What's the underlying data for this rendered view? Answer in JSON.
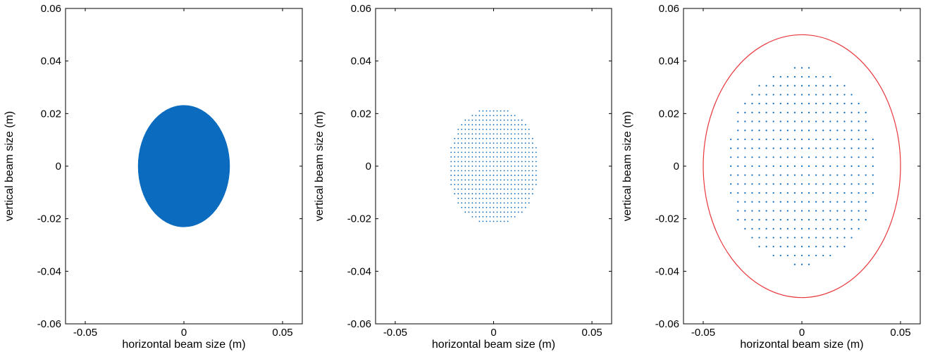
{
  "chart_data": [
    {
      "type": "scatter",
      "xlabel": "horizontal beam size (m)",
      "ylabel": "vertical beam size (m)",
      "xlim": [
        -0.06,
        0.06
      ],
      "ylim": [
        -0.06,
        0.06
      ],
      "xticks": [
        -0.05,
        0,
        0.05
      ],
      "xtick_labels": [
        "-0.05",
        "0",
        "0.05"
      ],
      "yticks": [
        -0.06,
        -0.04,
        -0.02,
        0,
        0.02,
        0.04,
        0.06
      ],
      "ytick_labels": [
        "-0.06",
        "-0.04",
        "-0.02",
        "0",
        "0.02",
        "0.04",
        "0.06"
      ],
      "series": [
        {
          "kind": "filled-ellipse",
          "center": [
            0,
            0
          ],
          "semi_axes": [
            0.0233,
            0.0232
          ],
          "color": "#0b6bbf"
        }
      ]
    },
    {
      "type": "scatter",
      "xlabel": "horizontal beam size (m)",
      "ylabel": "vertical beam size (m)",
      "xlim": [
        -0.06,
        0.06
      ],
      "ylim": [
        -0.06,
        0.06
      ],
      "xticks": [
        -0.05,
        0,
        0.05
      ],
      "xtick_labels": [
        "-0.05",
        "0",
        "0.05"
      ],
      "yticks": [
        -0.06,
        -0.04,
        -0.02,
        0,
        0.02,
        0.04,
        0.06
      ],
      "ytick_labels": [
        "-0.06",
        "-0.04",
        "-0.02",
        "0",
        "0.02",
        "0.04",
        "0.06"
      ],
      "series": [
        {
          "kind": "point-grid",
          "center": [
            0,
            0
          ],
          "semi_axes": [
            0.0233,
            0.0225
          ],
          "step": [
            0.0018,
            0.00175
          ],
          "color": "#0b6bbf"
        }
      ]
    },
    {
      "type": "scatter",
      "xlabel": "horizontal beam size (m)",
      "ylabel": "vertical beam size (m)",
      "xlim": [
        -0.06,
        0.06
      ],
      "ylim": [
        -0.06,
        0.06
      ],
      "xticks": [
        -0.05,
        0,
        0.05
      ],
      "xtick_labels": [
        "-0.05",
        "0",
        "0.05"
      ],
      "yticks": [
        -0.06,
        -0.04,
        -0.02,
        0,
        0.02,
        0.04,
        0.06
      ],
      "ytick_labels": [
        "-0.06",
        "-0.04",
        "-0.02",
        "0",
        "0.02",
        "0.04",
        "0.06"
      ],
      "series": [
        {
          "kind": "point-grid",
          "center": [
            0,
            0
          ],
          "semi_axes": [
            0.0385,
            0.038
          ],
          "step": [
            0.0036,
            0.0034
          ],
          "color": "#0b6bbf"
        },
        {
          "kind": "ellipse-outline",
          "center": [
            0,
            0
          ],
          "semi_axes": [
            0.05,
            0.05
          ],
          "color": "#e8383d"
        }
      ]
    }
  ]
}
